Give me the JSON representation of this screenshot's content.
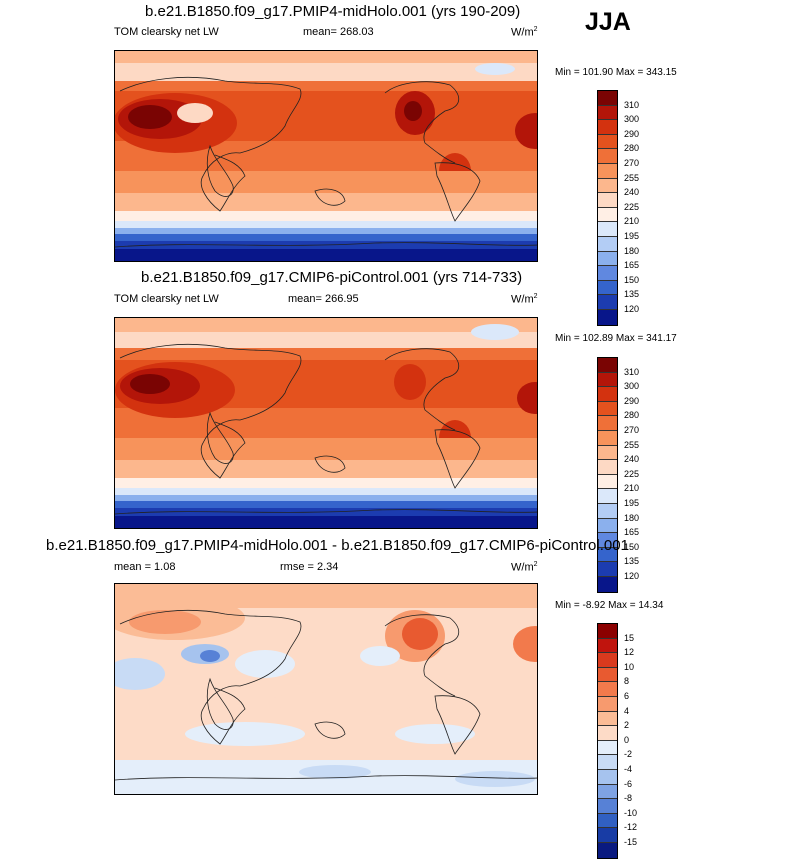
{
  "season": "JJA",
  "panels": [
    {
      "title": "b.e21.B1850.f09_g17.PMIP4-midHolo.001 (yrs 190-209)",
      "left_label": "TOM clearsky net LW",
      "center_label": "mean= 268.03",
      "units_base": "W/m",
      "units_sup": "2",
      "minmax": "Min = 101.90 Max = 343.15",
      "levels": [
        "310",
        "300",
        "290",
        "280",
        "270",
        "255",
        "240",
        "225",
        "210",
        "195",
        "180",
        "165",
        "150",
        "135",
        "120"
      ],
      "colors": [
        "#7a0403",
        "#b31509",
        "#d3320f",
        "#e4521e",
        "#ef7038",
        "#f7935b",
        "#fcb78d",
        "#fdd9c4",
        "#ffefe5",
        "#dbe8fa",
        "#b3cdf5",
        "#8bb0ed",
        "#6088e0",
        "#3564cc",
        "#1c3cb0",
        "#08168a"
      ]
    },
    {
      "title": "b.e21.B1850.f09_g17.CMIP6-piControl.001 (yrs 714-733)",
      "left_label": "TOM clearsky net LW",
      "center_label": "mean= 266.95",
      "units_base": "W/m",
      "units_sup": "2",
      "minmax": "Min = 102.89 Max = 341.17",
      "levels": [
        "310",
        "300",
        "290",
        "280",
        "270",
        "255",
        "240",
        "225",
        "210",
        "195",
        "180",
        "165",
        "150",
        "135",
        "120"
      ],
      "colors": [
        "#7a0403",
        "#b31509",
        "#d3320f",
        "#e4521e",
        "#ef7038",
        "#f7935b",
        "#fcb78d",
        "#fdd9c4",
        "#ffefe5",
        "#dbe8fa",
        "#b3cdf5",
        "#8bb0ed",
        "#6088e0",
        "#3564cc",
        "#1c3cb0",
        "#08168a"
      ]
    },
    {
      "title": "b.e21.B1850.f09_g17.PMIP4-midHolo.001 - b.e21.B1850.f09_g17.CMIP6-piControl.001",
      "left_label": "mean =   1.08",
      "center_label": "rmse =   2.34",
      "units_base": "W/m",
      "units_sup": "2",
      "minmax": "Min =  -8.92 Max =  14.34",
      "levels": [
        "15",
        "12",
        "10",
        "8",
        "6",
        "4",
        "2",
        "0",
        "-2",
        "-4",
        "-6",
        "-8",
        "-10",
        "-12",
        "-15"
      ],
      "colors": [
        "#8b0000",
        "#c0140d",
        "#d93a1e",
        "#e85a30",
        "#f27a4c",
        "#f79a6e",
        "#fbbc96",
        "#fddbc7",
        "#e4eefa",
        "#c8dbf5",
        "#a6c3ee",
        "#7fa3e3",
        "#5781d6",
        "#3160c2",
        "#183ca5",
        "#0a1a80"
      ]
    }
  ],
  "chart_data": [
    {
      "type": "heatmap",
      "title": "b.e21.B1850.f09_g17.PMIP4-midHolo.001 (yrs 190-209)",
      "variable": "TOM clearsky net LW",
      "units": "W/m2",
      "mean": 268.03,
      "min": 101.9,
      "max": 343.15,
      "contour_levels": [
        120,
        135,
        150,
        165,
        180,
        195,
        210,
        225,
        240,
        255,
        270,
        280,
        290,
        300,
        310
      ]
    },
    {
      "type": "heatmap",
      "title": "b.e21.B1850.f09_g17.CMIP6-piControl.001 (yrs 714-733)",
      "variable": "TOM clearsky net LW",
      "units": "W/m2",
      "mean": 266.95,
      "min": 102.89,
      "max": 341.17,
      "contour_levels": [
        120,
        135,
        150,
        165,
        180,
        195,
        210,
        225,
        240,
        255,
        270,
        280,
        290,
        300,
        310
      ]
    },
    {
      "type": "heatmap",
      "title": "b.e21.B1850.f09_g17.PMIP4-midHolo.001 - b.e21.B1850.f09_g17.CMIP6-piControl.001",
      "variable": "difference",
      "units": "W/m2",
      "mean": 1.08,
      "rmse": 2.34,
      "min": -8.92,
      "max": 14.34,
      "contour_levels": [
        -15,
        -12,
        -10,
        -8,
        -6,
        -4,
        -2,
        0,
        2,
        4,
        6,
        8,
        10,
        12,
        15
      ]
    }
  ]
}
